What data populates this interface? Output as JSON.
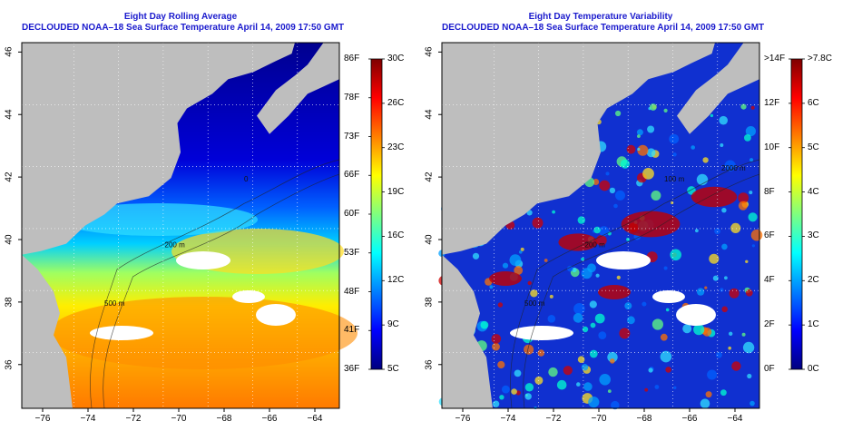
{
  "panels": [
    {
      "title_line1": "Eight Day Rolling Average",
      "title_line2": "DECLOUDED NOAA–18 Sea Surface Temperature April 14, 2009 17:50 GMT",
      "x_ticks": [
        "−76",
        "−74",
        "−72",
        "−70",
        "−68",
        "−66",
        "−64"
      ],
      "y_ticks": [
        "46",
        "44",
        "42",
        "40",
        "38",
        "36"
      ],
      "colorbar_left_labels": [
        "86F",
        "78F",
        "73F",
        "66F",
        "60F",
        "53F",
        "48F",
        "41F",
        "36F"
      ],
      "colorbar_right_labels": [
        "30C",
        "26C",
        "23C",
        "19C",
        "16C",
        "12C",
        "9C",
        "5C"
      ],
      "contour_labels": [
        "500 m",
        "200 m",
        "0"
      ]
    },
    {
      "title_line1": "Eight Day Temperature Variability",
      "title_line2": "DECLOUDED NOAA–18 Sea Surface Temperature April 14, 2009 17:50 GMT",
      "x_ticks": [
        "−76",
        "−74",
        "−72",
        "−70",
        "−68",
        "−66",
        "−64"
      ],
      "y_ticks": [
        "46",
        "44",
        "42",
        "40",
        "38",
        "36"
      ],
      "colorbar_left_labels": [
        ">14F",
        "12F",
        "10F",
        "8F",
        "6F",
        "4F",
        "2F",
        "0F"
      ],
      "colorbar_right_labels": [
        ">7.8C",
        "6C",
        "5C",
        "4C",
        "3C",
        "2C",
        "1C",
        "0C"
      ],
      "contour_labels": [
        "500 m",
        "200 m",
        "100 m",
        "2000 m"
      ]
    }
  ],
  "colors": {
    "title": "#1a1acd",
    "land": "#bebebe",
    "cloud": "#ffffff",
    "jet_stops": [
      "#00007f",
      "#0000ff",
      "#007fff",
      "#00ffff",
      "#7fff7f",
      "#ffff00",
      "#ff7f00",
      "#ff0000",
      "#7f0000"
    ]
  }
}
